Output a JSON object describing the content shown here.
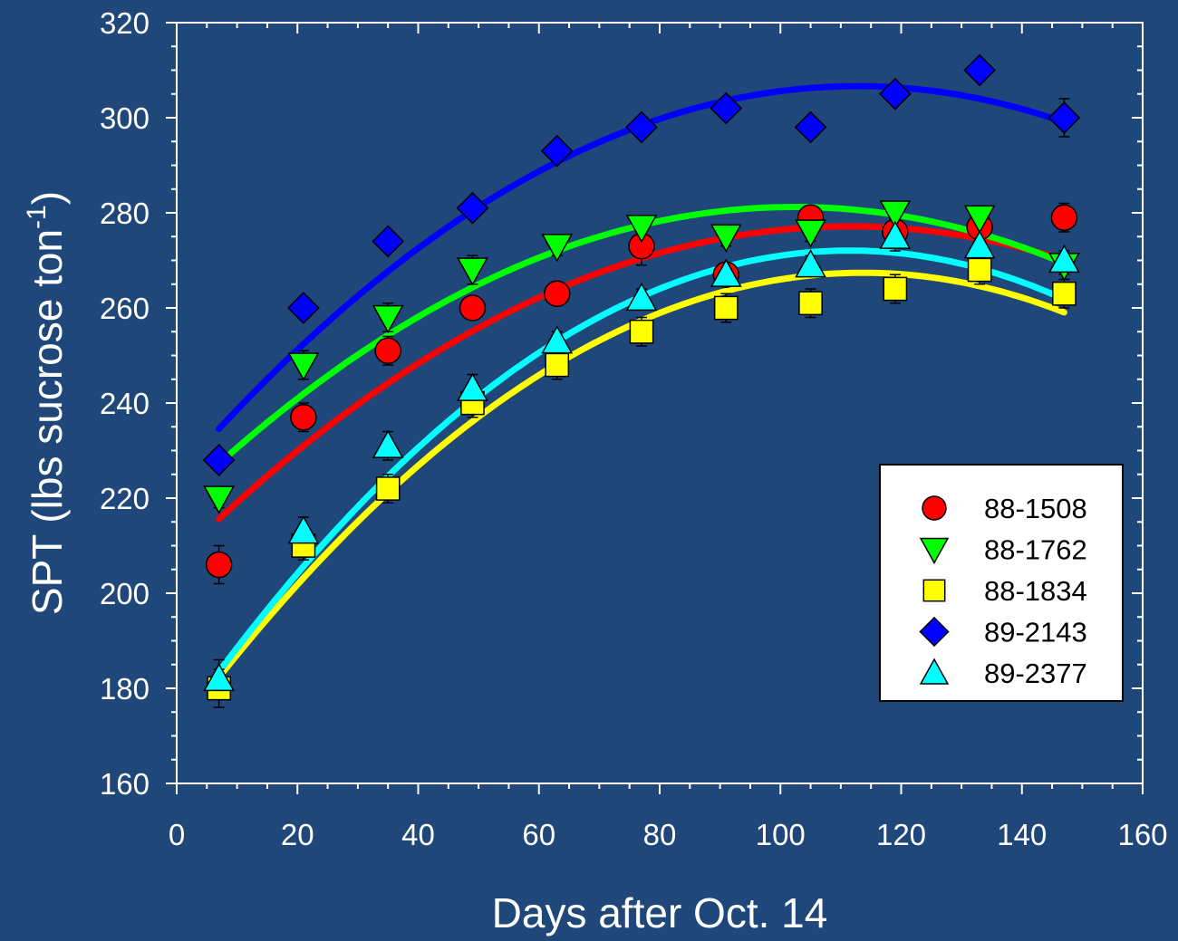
{
  "chart_data": {
    "type": "scatter",
    "xlabel": "Days after Oct. 14",
    "ylabel_main": "SPT (lbs sucrose ton",
    "ylabel_sup": "-1",
    "ylabel_close": ")",
    "xlim": [
      0,
      160
    ],
    "ylim": [
      160,
      320
    ],
    "xticks": [
      "0",
      "20",
      "40",
      "60",
      "80",
      "100",
      "120",
      "140",
      "160"
    ],
    "yticks": [
      "160",
      "180",
      "200",
      "220",
      "240",
      "260",
      "280",
      "300",
      "320"
    ],
    "grid": false,
    "legend_position": "right",
    "background_color": "#1f477a",
    "x": [
      7,
      21,
      35,
      49,
      63,
      77,
      91,
      105,
      119,
      133,
      147
    ],
    "series": [
      {
        "name": "88-1508",
        "marker": "circle",
        "color": "#ff0000",
        "fit_color": "#ff0000",
        "values": [
          206,
          237,
          251,
          260,
          263,
          273,
          267,
          279,
          276,
          277,
          279
        ],
        "errors": [
          4,
          3,
          3,
          2,
          2,
          4,
          2,
          2,
          4,
          2,
          3
        ],
        "fit_coeffs": [
          207.1,
          1.256,
          -0.00563
        ]
      },
      {
        "name": "88-1762",
        "marker": "triangle-down",
        "color": "#00ff00",
        "fit_color": "#00ff00",
        "values": [
          220,
          248,
          258,
          268,
          273,
          277,
          275,
          276,
          280,
          279,
          269
        ],
        "errors": [
          2,
          3,
          3,
          3,
          2,
          2,
          2,
          2,
          2,
          2,
          2
        ],
        "fit_coeffs": [
          219.0,
          1.216,
          -0.00594
        ]
      },
      {
        "name": "88-1834",
        "marker": "square",
        "color": "#ffff00",
        "fit_color": "#ffff00",
        "values": [
          180,
          210,
          222,
          240,
          248,
          255,
          260,
          261,
          264,
          268,
          263
        ],
        "errors": [
          4,
          3,
          3,
          3,
          3,
          3,
          3,
          3,
          3,
          3,
          3
        ],
        "fit_coeffs": [
          170.8,
          1.7,
          -0.00748
        ]
      },
      {
        "name": "89-2143",
        "marker": "diamond",
        "color": "#0000ff",
        "fit_color": "#0000ff",
        "values": [
          228,
          260,
          274,
          281,
          293,
          298,
          302,
          298,
          305,
          310,
          300
        ],
        "errors": [
          2,
          2,
          2,
          2,
          2,
          2,
          2,
          2,
          2,
          2,
          4
        ],
        "fit_coeffs": [
          224.7,
          1.454,
          -0.00645
        ]
      },
      {
        "name": "89-2377",
        "marker": "triangle-up",
        "color": "#00ffff",
        "fit_color": "#00ffff",
        "values": [
          182,
          213,
          231,
          243,
          253,
          262,
          267,
          269,
          275,
          273,
          270
        ],
        "errors": [
          4,
          3,
          3,
          3,
          2,
          2,
          2,
          2,
          2,
          2,
          2
        ],
        "fit_coeffs": [
          171.2,
          1.81,
          -0.00812
        ]
      }
    ]
  }
}
